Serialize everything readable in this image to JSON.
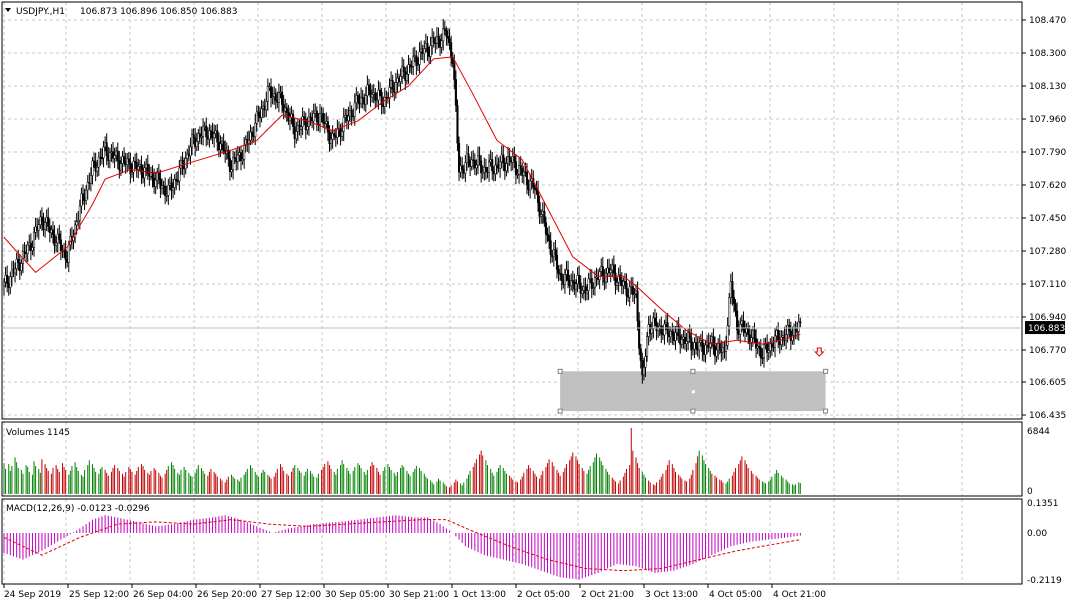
{
  "header": {
    "symbol": "USDJPY.,H1",
    "ohlc": "106.873 106.896 106.850 106.883"
  },
  "colors": {
    "up_volume": "#008000",
    "down_volume": "#c00000",
    "ma_line": "#e00000",
    "macd_hist": "#c000c0",
    "candle": "#000000",
    "zone": "#c0c0c0",
    "grid": "#c8c8c8"
  },
  "chart_data": [
    {
      "type": "candlestick",
      "panel": "price",
      "timeframe": "H1",
      "ylim": [
        106.435,
        108.47
      ],
      "y_ticks": [
        "108.470",
        "108.300",
        "108.130",
        "107.960",
        "107.790",
        "107.620",
        "107.450",
        "107.280",
        "107.110",
        "106.940",
        "106.770",
        "106.605",
        "106.435"
      ],
      "current_price_label": "106.883",
      "x_ticks": [
        "24 Sep 2019",
        "25 Sep 12:00",
        "26 Sep 04:00",
        "26 Sep 20:00",
        "27 Sep 12:00",
        "30 Sep 05:00",
        "30 Sep 21:00",
        "1 Oct 13:00",
        "2 Oct 05:00",
        "2 Oct 21:00",
        "3 Oct 13:00",
        "4 Oct 05:00",
        "4 Oct 21:00"
      ],
      "close_path": [
        [
          0,
          107.1
        ],
        [
          8,
          107.2
        ],
        [
          16,
          107.3
        ],
        [
          24,
          107.45
        ],
        [
          32,
          107.35
        ],
        [
          40,
          107.25
        ],
        [
          48,
          107.5
        ],
        [
          56,
          107.7
        ],
        [
          64,
          107.8
        ],
        [
          72,
          107.75
        ],
        [
          80,
          107.72
        ],
        [
          88,
          107.7
        ],
        [
          96,
          107.65
        ],
        [
          104,
          107.58
        ],
        [
          112,
          107.7
        ],
        [
          120,
          107.85
        ],
        [
          128,
          107.9
        ],
        [
          136,
          107.85
        ],
        [
          144,
          107.72
        ],
        [
          152,
          107.8
        ],
        [
          160,
          107.95
        ],
        [
          168,
          108.1
        ],
        [
          176,
          108.05
        ],
        [
          184,
          107.9
        ],
        [
          192,
          107.95
        ],
        [
          200,
          107.98
        ],
        [
          208,
          107.85
        ],
        [
          216,
          107.95
        ],
        [
          224,
          108.05
        ],
        [
          232,
          108.1
        ],
        [
          240,
          108.05
        ],
        [
          248,
          108.15
        ],
        [
          256,
          108.22
        ],
        [
          264,
          108.3
        ],
        [
          272,
          108.35
        ],
        [
          280,
          108.4
        ],
        [
          284,
          108.28
        ],
        [
          288,
          107.7
        ],
        [
          296,
          107.75
        ],
        [
          304,
          107.7
        ],
        [
          312,
          107.72
        ],
        [
          320,
          107.75
        ],
        [
          328,
          107.68
        ],
        [
          336,
          107.6
        ],
        [
          344,
          107.35
        ],
        [
          352,
          107.15
        ],
        [
          360,
          107.12
        ],
        [
          368,
          107.08
        ],
        [
          376,
          107.15
        ],
        [
          384,
          107.18
        ],
        [
          392,
          107.1
        ],
        [
          400,
          107.05
        ],
        [
          404,
          106.6
        ],
        [
          408,
          106.9
        ],
        [
          416,
          106.88
        ],
        [
          424,
          106.85
        ],
        [
          432,
          106.82
        ],
        [
          440,
          106.78
        ],
        [
          448,
          106.8
        ],
        [
          456,
          106.75
        ],
        [
          460,
          107.1
        ],
        [
          464,
          106.9
        ],
        [
          472,
          106.85
        ],
        [
          480,
          106.75
        ],
        [
          488,
          106.82
        ],
        [
          496,
          106.85
        ],
        [
          504,
          106.883
        ]
      ],
      "moving_average": [
        [
          0,
          107.35
        ],
        [
          20,
          107.17
        ],
        [
          40,
          107.3
        ],
        [
          56,
          107.52
        ],
        [
          64,
          107.65
        ],
        [
          80,
          107.7
        ],
        [
          96,
          107.68
        ],
        [
          112,
          107.72
        ],
        [
          128,
          107.76
        ],
        [
          144,
          107.8
        ],
        [
          160,
          107.85
        ],
        [
          176,
          107.98
        ],
        [
          192,
          107.95
        ],
        [
          208,
          107.9
        ],
        [
          224,
          107.95
        ],
        [
          240,
          108.05
        ],
        [
          256,
          108.13
        ],
        [
          272,
          108.27
        ],
        [
          284,
          108.28
        ],
        [
          296,
          108.1
        ],
        [
          312,
          107.85
        ],
        [
          328,
          107.75
        ],
        [
          344,
          107.5
        ],
        [
          360,
          107.25
        ],
        [
          376,
          107.15
        ],
        [
          392,
          107.15
        ],
        [
          400,
          107.1
        ],
        [
          416,
          106.98
        ],
        [
          432,
          106.87
        ],
        [
          448,
          106.8
        ],
        [
          464,
          106.82
        ],
        [
          480,
          106.8
        ],
        [
          496,
          106.83
        ],
        [
          504,
          106.85
        ]
      ],
      "highlight_zone": {
        "from_bar": 352,
        "to_bar": 520,
        "low": 106.455,
        "high": 106.66
      }
    },
    {
      "type": "bar",
      "panel": "volume",
      "title": "Volumes 1145",
      "ylim": [
        0,
        6844
      ],
      "y_ticks": [
        "6844",
        "0"
      ],
      "values": [
        3200,
        2600,
        3100,
        2400,
        2900,
        3800,
        3300,
        2700,
        2500,
        2100,
        3000,
        2800,
        2300,
        2000,
        3400,
        2900,
        2600,
        2200,
        3600,
        3100,
        2700,
        2400,
        2100,
        2700,
        3000,
        2600,
        2300,
        3200,
        2800,
        2500,
        2000,
        2400,
        2900,
        3300,
        2800,
        2400,
        2000,
        1800,
        2500,
        3000,
        3500,
        3100,
        2700,
        2300,
        2100,
        2600,
        2800,
        2500,
        2200,
        1900,
        2300,
        2700,
        3000,
        2700,
        2400,
        2100,
        1800,
        2300,
        2800,
        2600,
        2300,
        2000,
        2400,
        2800,
        3100,
        2900,
        2500,
        2200,
        2000,
        2400,
        2700,
        2500,
        2200,
        1900,
        1700,
        2100,
        2500,
        2900,
        3300,
        3000,
        2600,
        2200,
        2000,
        2500,
        2800,
        2500,
        2200,
        1900,
        1800,
        2200,
        2600,
        3000,
        2700,
        2400,
        2100,
        1900,
        2300,
        2600,
        2300,
        2100,
        1800,
        1600,
        1400,
        1200,
        1500,
        1800,
        2000,
        1800,
        1600,
        1500,
        1300,
        1700,
        2000,
        2300,
        2600,
        3000,
        2700,
        2300,
        2000,
        1800,
        2200,
        2500,
        2300,
        2000,
        1800,
        1600,
        1800,
        2200,
        2600,
        3100,
        2800,
        2400,
        2100,
        1900,
        2300,
        2700,
        3000,
        2700,
        2400,
        2200,
        1900,
        2300,
        2600,
        2400,
        2100,
        1800,
        1700,
        2100,
        2500,
        2800,
        3100,
        3400,
        3000,
        2600,
        2300,
        2000,
        2600,
        3000,
        3500,
        3100,
        2700,
        2400,
        2100,
        2400,
        2800,
        3200,
        3000,
        2700,
        2300,
        2000,
        2500,
        2900,
        3300,
        3000,
        2700,
        2300,
        2000,
        2400,
        2800,
        3100,
        2800,
        2500,
        2200,
        1900,
        2300,
        2700,
        3000,
        2800,
        2400,
        2100,
        1900,
        2300,
        2600,
        2900,
        2700,
        2400,
        2100,
        1800,
        1600,
        1400,
        1200,
        1000,
        1300,
        1600,
        1400,
        1200,
        1000,
        800,
        700,
        900,
        1200,
        1500,
        1300,
        1100,
        900,
        1200,
        1600,
        2000,
        2400,
        2800,
        3200,
        3600,
        4100,
        4500,
        4000,
        3500,
        3000,
        2600,
        2200,
        1900,
        2300,
        2700,
        3000,
        2700,
        2400,
        2100,
        1900,
        1700,
        1500,
        1300,
        1200,
        1500,
        1800,
        2200,
        2600,
        3000,
        2700,
        2400,
        2100,
        1800,
        1600,
        2000,
        2400,
        2800,
        3200,
        3600,
        3300,
        2900,
        2500,
        2200,
        1900,
        2300,
        2700,
        3100,
        3500,
        3900,
        4300,
        3900,
        3500,
        3100,
        2700,
        2400,
        2100,
        2500,
        2900,
        3300,
        3800,
        4200,
        3800,
        3400,
        3000,
        2600,
        2300,
        2000,
        1700,
        1500,
        1300,
        1100,
        1400,
        1800,
        2200,
        2600,
        3000,
        6844,
        4500,
        3800,
        3200,
        2700,
        2300,
        2000,
        1700,
        1400,
        1200,
        1000,
        900,
        1200,
        1500,
        1800,
        2100,
        2500,
        3000,
        3500,
        3100,
        2700,
        2300,
        2000,
        1800,
        1600,
        1400,
        1300,
        1600,
        2000,
        2500,
        3200,
        3900,
        4500,
        4000,
        3500,
        3100,
        2700,
        2400,
        2100,
        1900,
        1700,
        1500,
        1400,
        1200,
        1100,
        1300,
        1600,
        1900,
        2300,
        2700,
        3100,
        3500,
        3900,
        3500,
        3100,
        2700,
        2400,
        2100,
        1900,
        1700,
        1500,
        1300,
        1200,
        1100,
        1300,
        1500,
        1800,
        2100,
        2500,
        2200,
        1900,
        1700,
        1500,
        1300,
        1100,
        1000,
        900,
        1000,
        1200,
        1145
      ],
      "up_flags_pattern": "alternating"
    },
    {
      "type": "bar",
      "panel": "macd",
      "title": "MACD(12,26,9) -0.0123 -0.0296",
      "ylim": [
        -0.2119,
        0.1351
      ],
      "y_ticks": [
        "0.1351",
        "0.00",
        "-0.2119"
      ],
      "histogram_path": [
        [
          0,
          -0.09
        ],
        [
          12,
          -0.12
        ],
        [
          24,
          -0.08
        ],
        [
          36,
          -0.03
        ],
        [
          48,
          0.02
        ],
        [
          56,
          0.06
        ],
        [
          64,
          0.08
        ],
        [
          72,
          0.07
        ],
        [
          84,
          0.05
        ],
        [
          96,
          0.03
        ],
        [
          108,
          0.04
        ],
        [
          120,
          0.06
        ],
        [
          132,
          0.07
        ],
        [
          140,
          0.08
        ],
        [
          150,
          0.06
        ],
        [
          160,
          0.03
        ],
        [
          170,
          0.0
        ],
        [
          180,
          0.02
        ],
        [
          196,
          0.04
        ],
        [
          212,
          0.05
        ],
        [
          224,
          0.06
        ],
        [
          236,
          0.07
        ],
        [
          248,
          0.08
        ],
        [
          260,
          0.07
        ],
        [
          268,
          0.07
        ],
        [
          276,
          0.04
        ],
        [
          284,
          0.0
        ],
        [
          292,
          -0.06
        ],
        [
          304,
          -0.1
        ],
        [
          316,
          -0.12
        ],
        [
          328,
          -0.14
        ],
        [
          340,
          -0.17
        ],
        [
          352,
          -0.2
        ],
        [
          364,
          -0.21
        ],
        [
          376,
          -0.18
        ],
        [
          388,
          -0.14
        ],
        [
          400,
          -0.15
        ],
        [
          412,
          -0.18
        ],
        [
          424,
          -0.17
        ],
        [
          436,
          -0.14
        ],
        [
          448,
          -0.1
        ],
        [
          460,
          -0.06
        ],
        [
          472,
          -0.04
        ],
        [
          484,
          -0.03
        ],
        [
          496,
          -0.02
        ],
        [
          504,
          -0.012
        ]
      ],
      "signal_path": [
        [
          0,
          -0.02
        ],
        [
          24,
          -0.1
        ],
        [
          48,
          -0.02
        ],
        [
          72,
          0.04
        ],
        [
          96,
          0.05
        ],
        [
          120,
          0.04
        ],
        [
          144,
          0.06
        ],
        [
          168,
          0.04
        ],
        [
          192,
          0.03
        ],
        [
          216,
          0.04
        ],
        [
          240,
          0.05
        ],
        [
          264,
          0.06
        ],
        [
          280,
          0.06
        ],
        [
          296,
          0.01
        ],
        [
          320,
          -0.06
        ],
        [
          344,
          -0.12
        ],
        [
          368,
          -0.16
        ],
        [
          392,
          -0.17
        ],
        [
          416,
          -0.16
        ],
        [
          440,
          -0.12
        ],
        [
          464,
          -0.08
        ],
        [
          488,
          -0.05
        ],
        [
          504,
          -0.03
        ]
      ]
    }
  ]
}
